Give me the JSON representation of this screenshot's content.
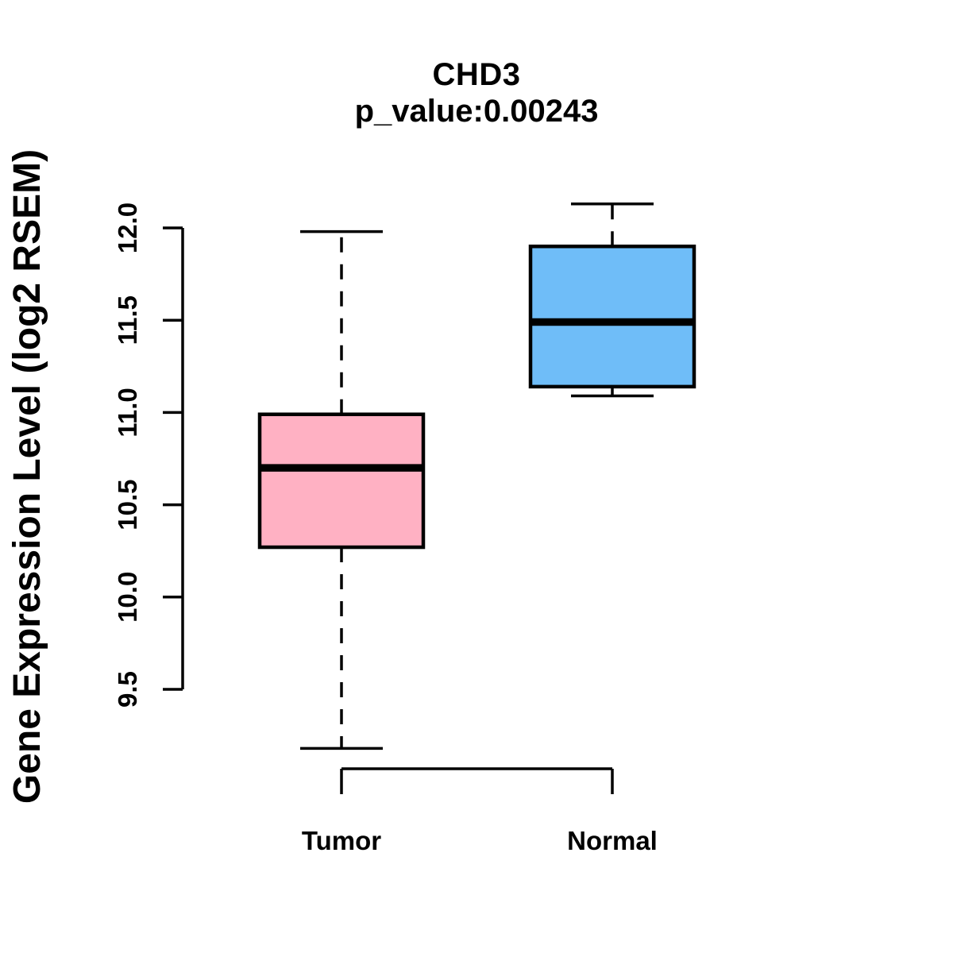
{
  "title": "CHD3",
  "subtitle": "p_value:0.00243",
  "y_axis_label": "Gene Expression Level (log2 RSEM)",
  "colors": {
    "background": "#ffffff",
    "stroke": "#000000",
    "tumor_fill": "#ffb1c3",
    "normal_fill": "#6fbdf8"
  },
  "chart_data": {
    "type": "boxplot",
    "title": "CHD3",
    "subtitle": "p_value:0.00243",
    "p_value": 0.00243,
    "gene": "CHD3",
    "xlabel": "",
    "ylabel": "Gene Expression Level (log2 RSEM)",
    "categories": [
      "Tumor",
      "Normal"
    ],
    "y_ticks": [
      9.5,
      10.0,
      10.5,
      11.0,
      11.5,
      12.0
    ],
    "ylim": [
      9.1,
      12.25
    ],
    "grid": false,
    "legend": "none",
    "series": [
      {
        "name": "Tumor",
        "lower_whisker": 9.18,
        "q1": 10.27,
        "median": 10.7,
        "q3": 10.99,
        "upper_whisker": 11.98,
        "fill": "#ffb1c3"
      },
      {
        "name": "Normal",
        "lower_whisker": 11.09,
        "q1": 11.14,
        "median": 11.49,
        "q3": 11.9,
        "upper_whisker": 12.13,
        "fill": "#6fbdf8"
      }
    ]
  }
}
